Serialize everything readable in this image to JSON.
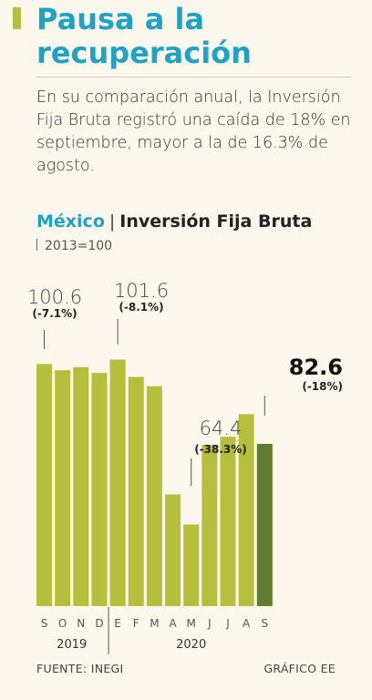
{
  "header": {
    "title": "Pausa a la recuperación",
    "lead": "En su comparación anual, la Inversión Fija Bruta registró una caída de 18% en septiembre, mayor a la de 16.3% de agosto."
  },
  "chart_header": {
    "country": "México",
    "series_title": "Inversión Fija Bruta",
    "unit": "2013=100"
  },
  "footer": {
    "source": "FUENTE: INEGI",
    "credit": "GRÁFICO EE"
  },
  "colors": {
    "title_blue": "#1fa3c4",
    "bar_green": "#b5bf3c",
    "bar_highlight": "#5e7d2f",
    "accent": "#b5bf3c"
  },
  "chart_data": {
    "type": "bar",
    "categories": [
      "S",
      "O",
      "N",
      "D",
      "E",
      "F",
      "M",
      "A",
      "M",
      "J",
      "J",
      "A",
      "S"
    ],
    "years": [
      {
        "label": "2019",
        "from": 0,
        "to": 3
      },
      {
        "label": "2020",
        "from": 4,
        "to": 12
      }
    ],
    "values": [
      100.6,
      99.2,
      99.9,
      98.6,
      101.6,
      97.7,
      95.6,
      71.2,
      64.4,
      82.4,
      84.2,
      89.3,
      82.6
    ],
    "highlight_index": 12,
    "ylim": [
      46,
      105
    ],
    "annotations": [
      {
        "index": 0,
        "value": "100.6",
        "change": "(-7.1%)",
        "style": "light"
      },
      {
        "index": 4,
        "value": "101.6",
        "change": "(-8.1%)",
        "style": "light"
      },
      {
        "index": 8,
        "value": "64.4",
        "change": "(-38.3%)",
        "style": "light"
      },
      {
        "index": 12,
        "value": "82.6",
        "change": "(-18%)",
        "style": "bold"
      }
    ],
    "xlabel": "",
    "ylabel": ""
  }
}
